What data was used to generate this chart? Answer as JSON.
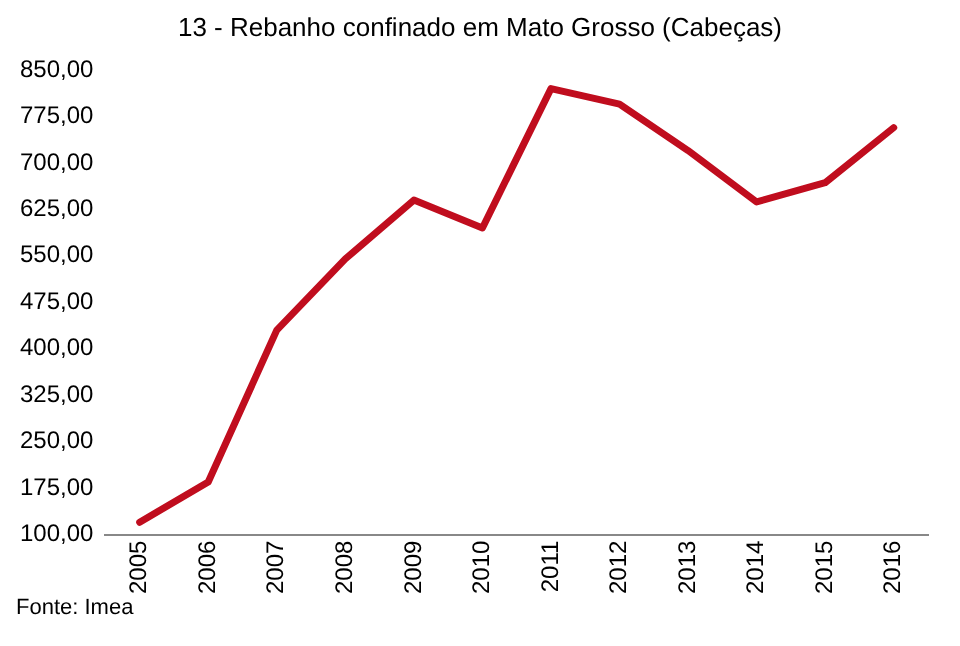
{
  "chart_data": {
    "type": "line",
    "title": "13 - Rebanho confinado em Mato Grosso (Cabeças)",
    "categories": [
      "2005",
      "2006",
      "2007",
      "2008",
      "2009",
      "2010",
      "2011",
      "2012",
      "2013",
      "2014",
      "2015",
      "2016"
    ],
    "series": [
      {
        "color": "#c00d1e",
        "values": [
          120,
          185,
          430,
          545,
          640,
          595,
          820,
          795,
          720,
          637,
          668,
          757
        ]
      }
    ],
    "ylim": [
      100,
      850
    ],
    "yticks": [
      {
        "value": 100,
        "label": "100,00"
      },
      {
        "value": 175,
        "label": "175,00"
      },
      {
        "value": 250,
        "label": "250,00"
      },
      {
        "value": 325,
        "label": "325,00"
      },
      {
        "value": 400,
        "label": "400,00"
      },
      {
        "value": 475,
        "label": "475,00"
      },
      {
        "value": 550,
        "label": "550,00"
      },
      {
        "value": 625,
        "label": "625,00"
      },
      {
        "value": 700,
        "label": "700,00"
      },
      {
        "value": 775,
        "label": "775,00"
      },
      {
        "value": 850,
        "label": "850,00"
      }
    ],
    "grid": false,
    "legend": false,
    "marker": "none",
    "line_style": "solid",
    "annotations": [
      "Fonte: Imea"
    ]
  }
}
